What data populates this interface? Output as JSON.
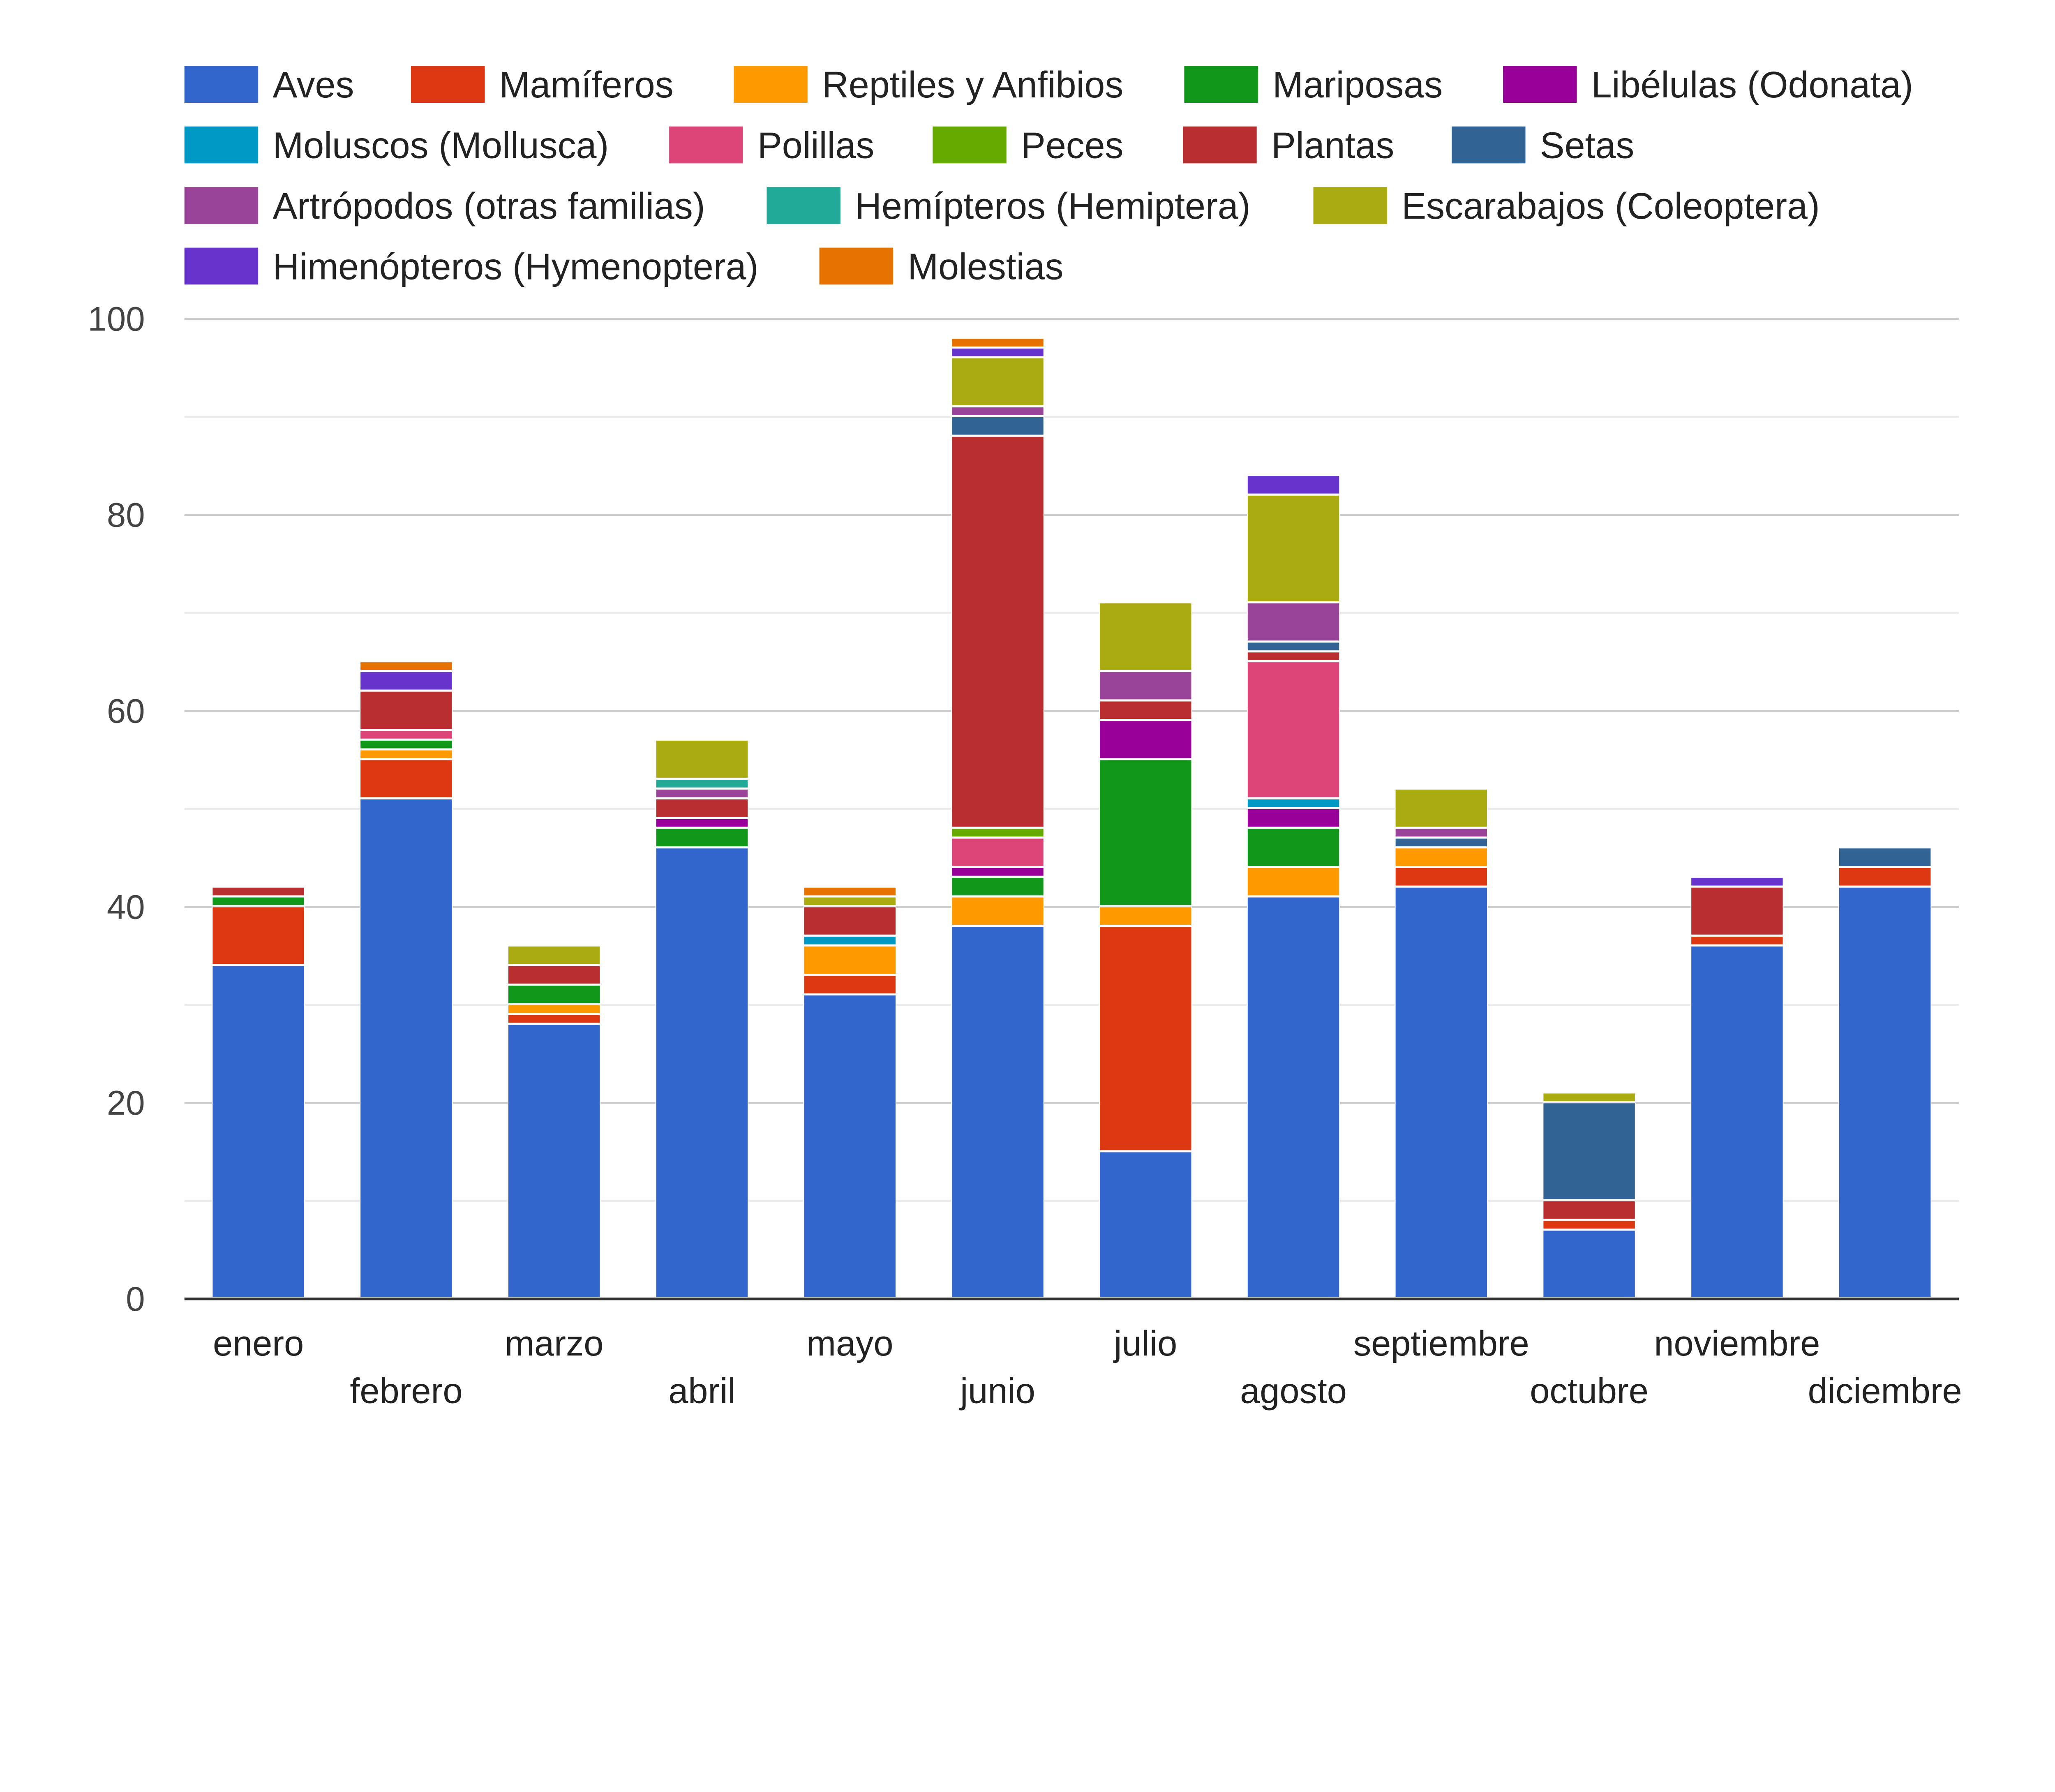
{
  "chart_data": {
    "type": "bar",
    "stacked": true,
    "title": "",
    "xlabel": "",
    "ylabel": "",
    "ylim": [
      0,
      100
    ],
    "yticks": [
      "0",
      "20",
      "40",
      "60",
      "80",
      "100"
    ],
    "grid": true,
    "legend_position": "top",
    "categories": [
      "enero",
      "febrero",
      "marzo",
      "abril",
      "mayo",
      "junio",
      "julio",
      "agosto",
      "septiembre",
      "octubre",
      "noviembre",
      "diciembre"
    ],
    "series": [
      {
        "name": "Aves",
        "color": "#3366cc",
        "values": [
          34,
          51,
          28,
          46,
          31,
          38,
          15,
          41,
          42,
          7,
          36,
          42
        ]
      },
      {
        "name": "Mamíferos",
        "color": "#dc3912",
        "values": [
          6,
          4,
          1,
          0,
          2,
          0,
          23,
          0,
          2,
          1,
          1,
          2
        ]
      },
      {
        "name": "Reptiles y Anfibios",
        "color": "#ff9900",
        "values": [
          0,
          1,
          1,
          0,
          3,
          3,
          2,
          3,
          2,
          0,
          0,
          0
        ]
      },
      {
        "name": "Mariposas",
        "color": "#109618",
        "values": [
          1,
          1,
          2,
          2,
          0,
          2,
          15,
          4,
          0,
          0,
          0,
          0
        ]
      },
      {
        "name": "Libélulas (Odonata)",
        "color": "#990099",
        "values": [
          0,
          0,
          0,
          1,
          0,
          1,
          4,
          2,
          0,
          0,
          0,
          0
        ]
      },
      {
        "name": "Moluscos (Mollusca)",
        "color": "#0099c6",
        "values": [
          0,
          0,
          0,
          0,
          1,
          0,
          0,
          1,
          0,
          0,
          0,
          0
        ]
      },
      {
        "name": "Polillas",
        "color": "#dd4477",
        "values": [
          0,
          1,
          0,
          0,
          0,
          3,
          0,
          14,
          0,
          0,
          0,
          0
        ]
      },
      {
        "name": "Peces",
        "color": "#66aa00",
        "values": [
          0,
          0,
          0,
          0,
          0,
          1,
          0,
          0,
          0,
          0,
          0,
          0
        ]
      },
      {
        "name": "Plantas",
        "color": "#b82e2e",
        "values": [
          1,
          4,
          2,
          2,
          3,
          40,
          2,
          1,
          0,
          2,
          5,
          0
        ]
      },
      {
        "name": "Setas",
        "color": "#316395",
        "values": [
          0,
          0,
          0,
          0,
          0,
          2,
          0,
          1,
          1,
          10,
          0,
          2
        ]
      },
      {
        "name": "Artrópodos (otras familias)",
        "color": "#994499",
        "values": [
          0,
          0,
          0,
          1,
          0,
          1,
          3,
          4,
          1,
          0,
          0,
          0
        ]
      },
      {
        "name": "Hemípteros (Hemiptera)",
        "color": "#22aa99",
        "values": [
          0,
          0,
          0,
          1,
          0,
          0,
          0,
          0,
          0,
          0,
          0,
          0
        ]
      },
      {
        "name": "Escarabajos (Coleoptera)",
        "color": "#aaaa11",
        "values": [
          0,
          0,
          2,
          4,
          1,
          5,
          7,
          11,
          4,
          1,
          0,
          0
        ]
      },
      {
        "name": "Himenópteros (Hymenoptera)",
        "color": "#6633cc",
        "values": [
          0,
          2,
          0,
          0,
          0,
          1,
          0,
          2,
          0,
          0,
          1,
          0
        ]
      },
      {
        "name": "Molestias",
        "color": "#e67300",
        "values": [
          0,
          1,
          0,
          0,
          1,
          1,
          0,
          0,
          0,
          0,
          0,
          0
        ]
      }
    ]
  }
}
